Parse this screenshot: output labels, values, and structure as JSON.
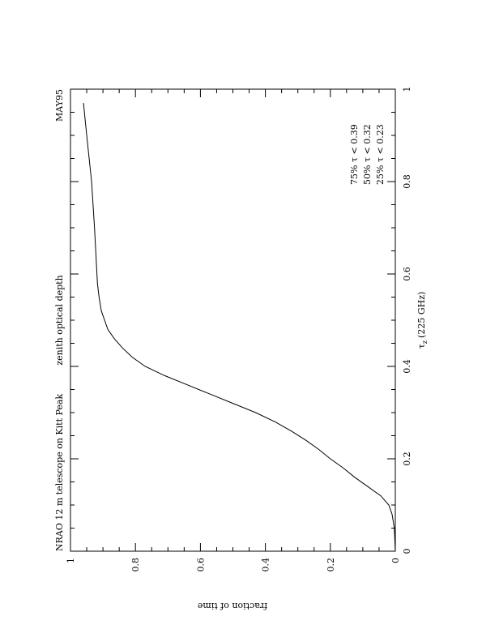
{
  "chart_data": {
    "type": "line",
    "orientation": "rotated-90-ccw",
    "title_left": "NRAO 12 m telescope on Kitt Peak",
    "title_center": "zenith optical depth",
    "title_right": "MAY95",
    "xlabel": "τz (225 GHz)",
    "xlabel_symbol": "τ",
    "xlabel_sub": "z",
    "xlabel_rest": "(225 GHz)",
    "ylabel": "fraction of time",
    "xlim": [
      0,
      1
    ],
    "ylim": [
      0,
      1
    ],
    "x_ticks": [
      {
        "value": 0,
        "label": "0"
      },
      {
        "value": 0.2,
        "label": "0.2"
      },
      {
        "value": 0.4,
        "label": "0.4"
      },
      {
        "value": 0.6,
        "label": "0.6"
      },
      {
        "value": 0.8,
        "label": "0.8"
      },
      {
        "value": 1,
        "label": "1"
      }
    ],
    "y_ticks": [
      {
        "value": 0,
        "label": "0"
      },
      {
        "value": 0.2,
        "label": "0.2"
      },
      {
        "value": 0.4,
        "label": "0.4"
      },
      {
        "value": 0.6,
        "label": "0.6"
      },
      {
        "value": 0.8,
        "label": "0.8"
      },
      {
        "value": 1,
        "label": "1"
      }
    ],
    "annotations": [
      "75%  τ < 0.39",
      "50%  τ < 0.32",
      "25%  τ < 0.23"
    ],
    "grid": false,
    "series": [
      {
        "x": [
          0.0,
          0.05,
          0.08,
          0.1,
          0.12,
          0.14,
          0.16,
          0.18,
          0.2,
          0.22,
          0.24,
          0.26,
          0.28,
          0.3,
          0.32,
          0.34,
          0.36,
          0.38,
          0.4,
          0.42,
          0.44,
          0.46,
          0.48,
          0.5,
          0.52,
          0.55,
          0.58,
          0.62,
          0.7,
          0.8,
          0.9,
          0.97
        ],
        "y": [
          0.0,
          0.003,
          0.01,
          0.02,
          0.045,
          0.085,
          0.125,
          0.16,
          0.2,
          0.235,
          0.275,
          0.32,
          0.37,
          0.43,
          0.5,
          0.57,
          0.64,
          0.71,
          0.77,
          0.81,
          0.84,
          0.865,
          0.885,
          0.895,
          0.905,
          0.912,
          0.917,
          0.92,
          0.926,
          0.935,
          0.95,
          0.96
        ]
      }
    ]
  }
}
